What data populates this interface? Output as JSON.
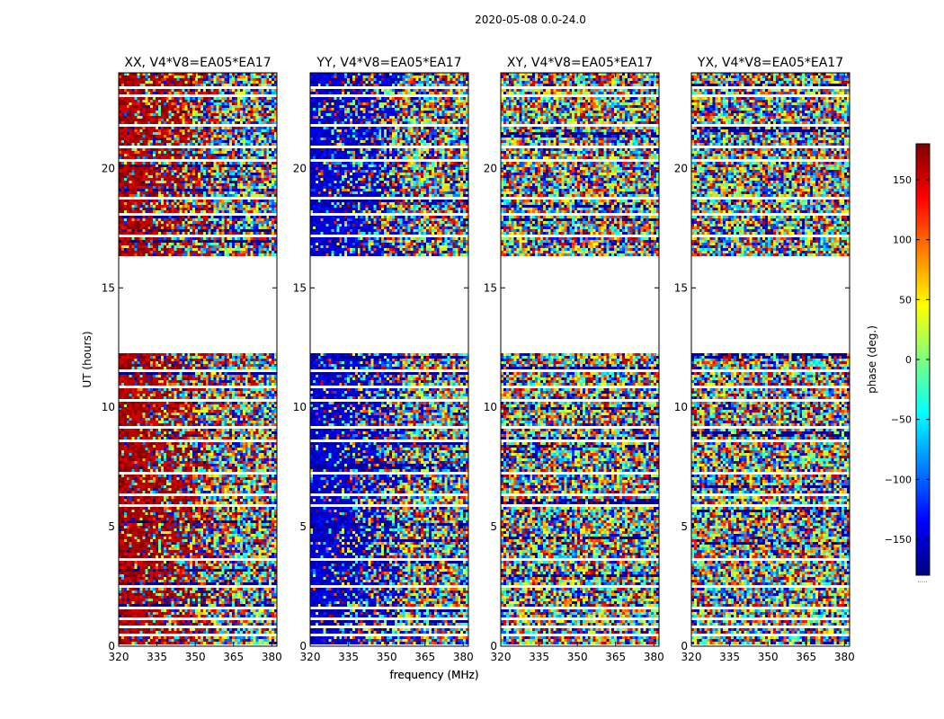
{
  "figure_title": "2020-05-08 0.0-24.0",
  "chart_data": [
    {
      "type": "heatmap",
      "title": "XX, V4*V8=EA05*EA17",
      "xlabel": "frequency (MHz)",
      "ylabel": "UT (hours)",
      "xlim": [
        320,
        382
      ],
      "ylim": [
        0,
        24
      ],
      "x_ticks": [
        320,
        335,
        350,
        365,
        380
      ],
      "y_ticks": [
        0,
        5,
        10,
        15,
        20
      ],
      "baseline_phase_deg": 165,
      "note": "phase vs time and frequency; coherent near +165 deg at low frequency, noisy elsewhere"
    },
    {
      "type": "heatmap",
      "title": "YY, V4*V8=EA05*EA17",
      "xlabel": "frequency (MHz)",
      "ylabel": "",
      "xlim": [
        320,
        382
      ],
      "ylim": [
        0,
        24
      ],
      "x_ticks": [
        320,
        335,
        350,
        365,
        380
      ],
      "y_ticks": [
        0,
        5,
        10,
        15,
        20
      ],
      "baseline_phase_deg": -150,
      "note": "phase vs time and frequency; coherent near -150 deg at low frequency, noisy elsewhere"
    },
    {
      "type": "heatmap",
      "title": "XY, V4*V8=EA05*EA17",
      "xlabel": "",
      "ylabel": "",
      "xlim": [
        320,
        382
      ],
      "ylim": [
        0,
        24
      ],
      "x_ticks": [
        320,
        335,
        350,
        365,
        380
      ],
      "y_ticks": [
        0,
        5,
        10,
        15,
        20
      ],
      "baseline_phase_deg": null,
      "note": "cross-hand phase, noise-dominated"
    },
    {
      "type": "heatmap",
      "title": "YX, V4*V8=EA05*EA17",
      "xlabel": "",
      "ylabel": "",
      "xlim": [
        320,
        382
      ],
      "ylim": [
        0,
        24
      ],
      "x_ticks": [
        320,
        335,
        350,
        365,
        380
      ],
      "y_ticks": [
        0,
        5,
        10,
        15,
        20
      ],
      "baseline_phase_deg": null,
      "note": "cross-hand phase, noise-dominated"
    }
  ],
  "data_coverage": {
    "ut_intervals_hours": [
      [
        0.1,
        1.5
      ],
      [
        1.65,
        3.6
      ],
      [
        3.7,
        8.5
      ],
      [
        8.65,
        12.25
      ],
      [
        16.35,
        24.0
      ]
    ],
    "gap_hours": [
      0.45,
      0.85,
      1.15,
      2.45,
      5.85,
      6.35,
      7.2,
      9.2,
      10.3,
      10.9,
      11.5,
      17.2,
      18.1,
      18.7,
      20.3,
      20.9,
      21.8,
      23.0,
      23.4
    ]
  },
  "colorbar": {
    "label": "phase (deg.)",
    "range": [
      -180,
      180
    ],
    "ticks": [
      150,
      100,
      50,
      0,
      -50,
      -100,
      -150
    ],
    "tick_labels": [
      "150",
      "100",
      "50",
      "0",
      "−50",
      "−100",
      "−150"
    ],
    "colormap": "jet",
    "footer": "....."
  }
}
